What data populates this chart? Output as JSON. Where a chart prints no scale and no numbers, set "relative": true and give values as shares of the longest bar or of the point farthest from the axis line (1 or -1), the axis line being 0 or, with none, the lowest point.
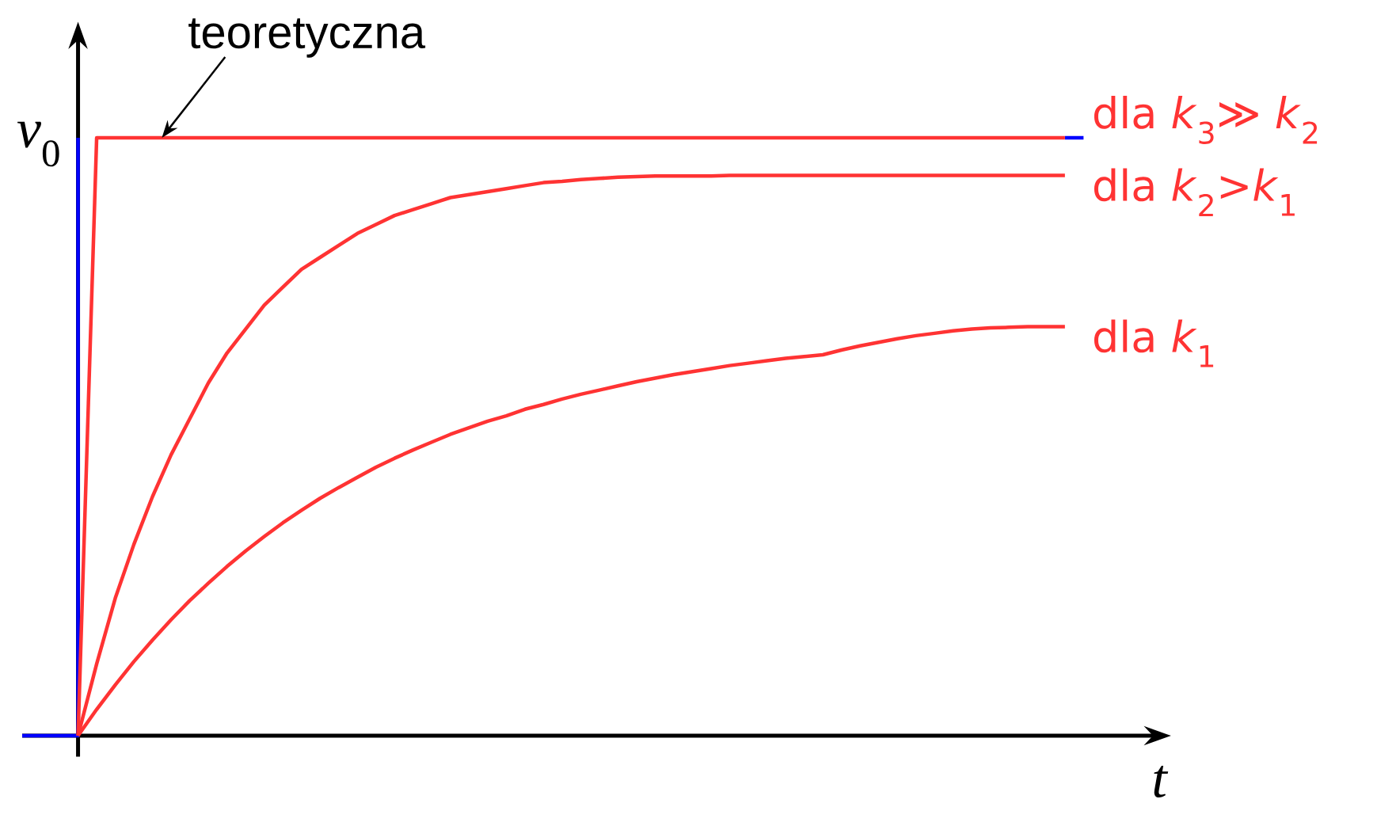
{
  "chart_data": {
    "type": "line",
    "relative": true,
    "annotations": [
      {
        "text": "teoretyczna",
        "y": 1
      }
    ],
    "xlabel": "*t*",
    "ylabel": "*v*$_{0}$",
    "categories": [
      null,
      null,
      null,
      null,
      null,
      null,
      null,
      null,
      null,
      null,
      null,
      null,
      null,
      null,
      null,
      null,
      null,
      null,
      null,
      null,
      null,
      null,
      null,
      null,
      null,
      null,
      null,
      null,
      null,
      null,
      null,
      null,
      null,
      null,
      null,
      null,
      null,
      null,
      null,
      null,
      null,
      null,
      null,
      null,
      null,
      null,
      null,
      null,
      null,
      null,
      null,
      null,
      null,
      null,
      null,
      null,
      null,
      null
    ],
    "series": [
      {
        "type": "step",
        "color": "#0000ff",
        "values": [
          0,
          0,
          0,
          1,
          null,
          null,
          null,
          null,
          null,
          null,
          null,
          null,
          null,
          null,
          null,
          null,
          null,
          null,
          null,
          null,
          null,
          null,
          null,
          null,
          null,
          null,
          null,
          null,
          null,
          null,
          null,
          null,
          null,
          null,
          null,
          null,
          null,
          null,
          null,
          null,
          null,
          null,
          null,
          null,
          null,
          null,
          null,
          null,
          null,
          null,
          null,
          null,
          null,
          null,
          null,
          null,
          1,
          1
        ]
      },
      {
        "name": "dla *k*$_{3}$≫ *k*$_{2}$",
        "color": "#ff3333",
        "values": [
          null,
          null,
          null,
          0,
          1,
          1,
          1,
          1,
          1,
          1,
          1,
          1,
          1,
          1,
          1,
          1,
          1,
          1,
          1,
          1,
          1,
          1,
          1,
          1,
          1,
          1,
          1,
          1,
          1,
          1,
          1,
          1,
          1,
          1,
          1,
          1,
          1,
          1,
          1,
          1,
          1,
          1,
          1,
          1,
          1,
          1,
          1,
          1,
          1,
          1,
          1,
          1,
          1,
          1,
          1,
          1,
          1,
          null
        ]
      },
      {
        "name": "dla *k*$_{2}$>*k*$_{1}$",
        "color": "#ff3333",
        "values": [
          null,
          null,
          null,
          0,
          0.12,
          0.23,
          0.32,
          0.4,
          0.47,
          0.53,
          0.59,
          0.64,
          0.68,
          0.72,
          0.75,
          0.78,
          0.8,
          0.82,
          0.84,
          0.855,
          0.87,
          0.88,
          0.89,
          0.9,
          0.905,
          0.91,
          0.915,
          0.92,
          0.925,
          0.927,
          0.93,
          0.932,
          0.934,
          0.935,
          0.936,
          0.936,
          0.936,
          0.936,
          0.937,
          0.937,
          0.937,
          0.937,
          0.937,
          0.937,
          0.937,
          0.937,
          0.937,
          0.937,
          0.937,
          0.937,
          0.937,
          0.937,
          0.937,
          0.937,
          0.937,
          0.937,
          0.937,
          null
        ]
      },
      {
        "name": "dla *k*$_{1}$",
        "color": "#ff3333",
        "values": [
          null,
          null,
          null,
          0,
          0.044,
          0.085,
          0.124,
          0.16,
          0.194,
          0.226,
          0.255,
          0.283,
          0.309,
          0.333,
          0.356,
          0.377,
          0.397,
          0.415,
          0.432,
          0.449,
          0.464,
          0.478,
          0.491,
          0.504,
          0.515,
          0.526,
          0.535,
          0.546,
          0.554,
          0.563,
          0.571,
          0.578,
          0.585,
          0.592,
          0.598,
          0.604,
          0.609,
          0.614,
          0.619,
          0.623,
          0.627,
          0.631,
          0.634,
          0.637,
          0.645,
          0.652,
          0.658,
          0.664,
          0.669,
          0.673,
          0.677,
          0.68,
          0.682,
          0.683,
          0.684,
          0.684,
          0.684,
          null
        ]
      }
    ]
  }
}
